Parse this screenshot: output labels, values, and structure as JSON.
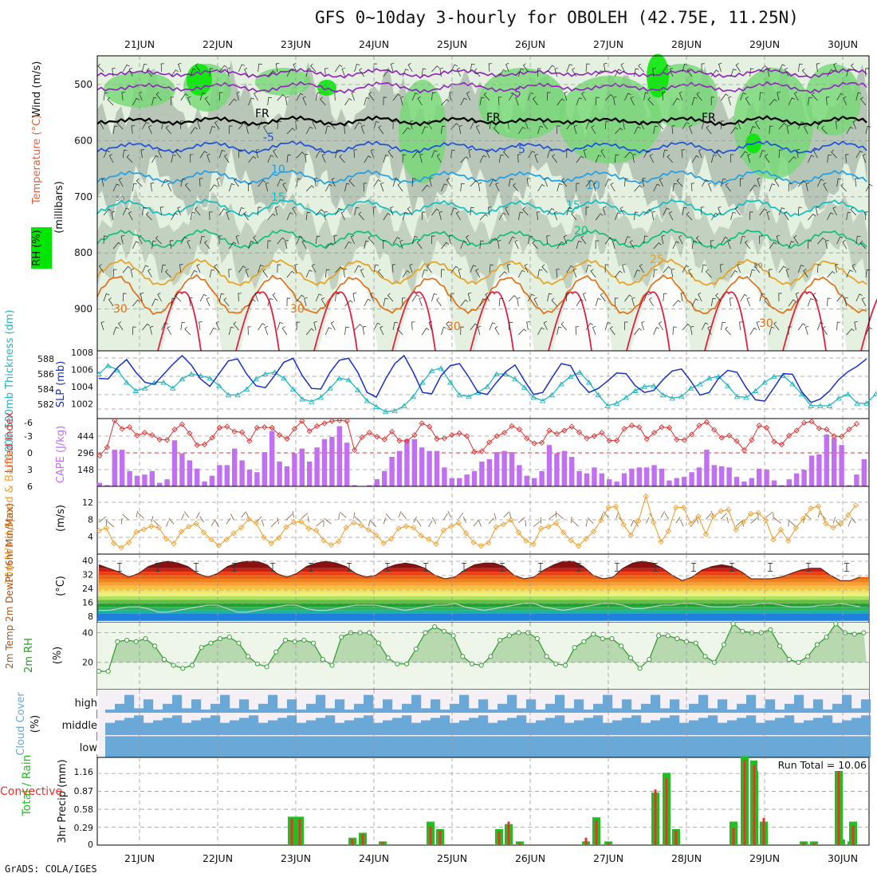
{
  "title": "GFS 0~10day 3-hourly for OBOLEH (42.75E, 11.25N)",
  "credit": "GrADS: COLA/IGES",
  "dates": [
    "21JUN",
    "22JUN",
    "23JUN",
    "24JUN",
    "25JUN",
    "26JUN",
    "27JUN",
    "28JUN",
    "29JUN",
    "30JUN"
  ],
  "colors": {
    "rh_light": "#e4f0e0",
    "rh_mid": "#a8b8a8",
    "rh_green": "#74d874",
    "rh_bright": "#00e600",
    "iso_freeze": "#000000",
    "iso_minus5": "#9020c0",
    "iso_5": "#1e50e0",
    "iso_10": "#20a0e8",
    "iso_15": "#10c0c0",
    "iso_20": "#10c080",
    "iso_25": "#e8a020",
    "iso_30": "#e07018",
    "iso_35": "#e02040",
    "thickness": "#20b8c0",
    "slp": "#1830c8",
    "cape": "#c070f0",
    "lifted": "#e03030",
    "wind_speed": "#f0a030",
    "barbs": "#806040",
    "rh2m": "#2a9a2a",
    "cloud": "#6aa8d8",
    "precip_total": "#20c020",
    "precip_conv": "#f03030"
  },
  "panels": {
    "upper": {
      "ylabel_wind": "Wind (m/s)",
      "ylabel_temp": "Temperature (°C)",
      "ylabel_rh": "RH (%)",
      "ylabel_units": "(millibars)",
      "yticks": [
        "500",
        "600",
        "700",
        "800",
        "900"
      ],
      "iso_labels": [
        "FR",
        "FR",
        "FR",
        "-5",
        "-5",
        "5",
        "5",
        "10",
        "10",
        "15",
        "15",
        "20",
        "25",
        "30",
        "30",
        "30",
        "30",
        "50",
        "50"
      ]
    },
    "slp": {
      "ylabel_left": "1000-500mb Thickness (dm)",
      "ylabel_right": "SLP (mb)",
      "yticks_left": [
        "588",
        "586",
        "584",
        "582"
      ],
      "yticks_right": [
        "1008",
        "1006",
        "1004",
        "1002"
      ]
    },
    "cape": {
      "ylabel_left": "Lifted Index",
      "ylabel_right": "CAPE (J/kg)",
      "yticks_left": [
        "-6",
        "-3",
        "0",
        "3",
        "6"
      ],
      "yticks_right": [
        "444",
        "296",
        "148"
      ]
    },
    "wind10": {
      "ylabel": "10m Wind Speed & Barbs",
      "units": "(m/s)",
      "yticks": [
        "12",
        "8",
        "4"
      ]
    },
    "temp2m": {
      "ylabel": "2m Temp 2m DewPt (6hr Min/Max)",
      "units": "(°C)",
      "yticks": [
        "40",
        "32",
        "24",
        "16",
        "8"
      ]
    },
    "rh2m": {
      "ylabel": "2m RH",
      "units": "(%)",
      "yticks": [
        "40",
        "20"
      ]
    },
    "cloud": {
      "ylabel": "Cloud Cover",
      "units": "(%)",
      "levels": [
        "high",
        "middle",
        "low"
      ]
    },
    "precip": {
      "ylabel_left": "Total / Rain",
      "ylabel_conv": "Convective",
      "ylabel_units": "3hr Precip (mm)",
      "yticks": [
        "1.16",
        "0.87",
        "0.58",
        "0.29",
        "0"
      ],
      "run_total": "Run Total = 10.06"
    }
  },
  "chart_data": [
    {
      "type": "line",
      "title": "Sea level pressure and 1000-500mb thickness",
      "x_unit": "3-hour step from 20JUN 12Z",
      "series": [
        {
          "name": "SLP (mb)",
          "values": [
            1004.6,
            1004.5,
            1006.2,
            1007.4,
            1005.5,
            1004,
            1003.7,
            1005.2,
            1006.7,
            1008,
            1006.6,
            1004.5,
            1003.4,
            1005.3,
            1007.2,
            1007.5,
            1005.2,
            1003.5,
            1003.2,
            1005,
            1007,
            1007.6,
            1005,
            1003.1,
            1003,
            1005.5,
            1007.3,
            1007.6,
            1005.5,
            1002.5,
            1001.8,
            1004.5,
            1006.8,
            1008,
            1005.5,
            1002.5,
            1002.3,
            1005,
            1006.5,
            1006.8,
            1004.8,
            1002.5,
            1002.2,
            1004,
            1005.6,
            1006.6,
            1004.3,
            1002.2,
            1002.5,
            1004.7,
            1006.8,
            1006.5,
            1004,
            1002.5,
            1003.1,
            1004.2,
            1005.4,
            1005.3,
            1003.5,
            1002.5,
            1002.8,
            1004.4,
            1005.7,
            1006,
            1004.2,
            1002.1,
            1002.5,
            1004.6,
            1005.8,
            1005.5,
            1003.2,
            1001.4,
            1001.2,
            1003.2,
            1005.3,
            1005.2,
            1002.6,
            1001,
            1001.5,
            1002.7,
            1004.4,
            1005.6,
            1006.4,
            1007.5
          ]
        },
        {
          "name": "1000-500mb thickness (dm)",
          "values": [
            586,
            587,
            586.5,
            585,
            584,
            584.3,
            585,
            585,
            584.3,
            585.4,
            586,
            585.8,
            585.5,
            584.6,
            583.5,
            583.5,
            584.2,
            585.4,
            586,
            586.2,
            585.5,
            584.2,
            583,
            582.7,
            583.2,
            584.3,
            585.5,
            585.3,
            584.1,
            582.8,
            582.1,
            581.5,
            581.6,
            582.2,
            583.3,
            585,
            586.4,
            586.7,
            585,
            583.5,
            583.3,
            583.8,
            584.5,
            586,
            586,
            585.4,
            584.4,
            583.2,
            582.8,
            583.5,
            584.8,
            585.7,
            586.2,
            585,
            583.5,
            582.2,
            582.5,
            583.2,
            584,
            584.5,
            584.6,
            583.5,
            583.1,
            583.3,
            584.3,
            584.8,
            585.5,
            585.7,
            584.6,
            583.3,
            583.2,
            584,
            585,
            585.7,
            585.8,
            584.8,
            583.6,
            582.2,
            582.2,
            582.2,
            583.1,
            583.6,
            582.5,
            582.5,
            583.6
          ]
        }
      ]
    },
    {
      "type": "bar",
      "title": "CAPE and Lifted Index",
      "series": [
        {
          "name": "CAPE (J/kg)",
          "values": [
            30,
            10,
            310,
            310,
            130,
            90,
            100,
            130,
            30,
            60,
            390,
            280,
            220,
            150,
            40,
            90,
            180,
            180,
            320,
            220,
            140,
            120,
            290,
            470,
            210,
            170,
            280,
            320,
            210,
            330,
            400,
            420,
            510,
            370,
            10,
            0,
            10,
            60,
            130,
            250,
            300,
            400,
            400,
            330,
            300,
            300,
            160,
            70,
            70,
            100,
            130,
            210,
            230,
            290,
            300,
            290,
            180,
            90,
            70,
            130,
            350,
            280,
            300,
            250,
            130,
            110,
            160,
            110,
            60,
            40,
            110,
            150,
            160,
            160,
            180,
            150,
            50,
            70,
            80,
            120,
            160,
            310,
            180,
            170,
            160,
            80,
            40,
            70,
            150,
            140,
            50,
            10,
            60,
            110,
            140,
            260,
            270,
            440,
            410,
            350,
            10,
            100,
            230
          ]
        },
        {
          "name": "Lifted Index",
          "values": [
            0.5,
            -1,
            -5.8,
            -4.3,
            -4.6,
            -3.1,
            -3.6,
            -3.2,
            -2.4,
            -2.3,
            -4.2,
            -5.1,
            -3.5,
            -1.4,
            -1.5,
            -2.7,
            -4.5,
            -4.7,
            -3.8,
            -3.7,
            -2.1,
            -4.5,
            -4.6,
            -4.5,
            -3.2,
            -2.5,
            -4.3,
            -5.7,
            -3.9,
            -4.8,
            -5.3,
            -5.7,
            -5.8,
            -5.7,
            -0.5,
            -2.8,
            -3.6,
            -2.9,
            -2.4,
            -3.8,
            -2.2,
            -2.1,
            -3.2,
            -5.3,
            -4.7,
            -2.5,
            -2.6,
            -3.2,
            -3.5,
            -3,
            -0.2,
            -0.3,
            -1.9,
            -3,
            -3.6,
            -4.8,
            -4.2,
            -2.6,
            -1.7,
            -1.8,
            -4,
            -3.4,
            -4,
            -4.7,
            -3.7,
            -2.6,
            -3,
            -3.6,
            -2.2,
            -2.2,
            -4.3,
            -4.9,
            -4.6,
            -2.5,
            -3.6,
            -4.6,
            -4.5,
            -2.4,
            -2.3,
            -3.3,
            -4.9,
            -5.5,
            -4.1,
            -2.7,
            -3.1,
            -2.1,
            -0.5,
            -2.3,
            -4.9,
            -4.5,
            -2,
            -1.5,
            -3.1,
            -4,
            -5.4,
            -5.6,
            -4.4,
            -4.2,
            -3,
            -2.9,
            -4.2,
            -5.2
          ]
        }
      ]
    },
    {
      "type": "line",
      "title": "10m wind speed (m/s)",
      "series": [
        {
          "name": "10m wind speed",
          "values": [
            5.6,
            6.2,
            2.8,
            1.8,
            3,
            5.3,
            5.9,
            6.6,
            6.3,
            3.8,
            2.7,
            5.4,
            6.5,
            7.2,
            5.2,
            3.6,
            2.3,
            3.6,
            5,
            6.3,
            8.2,
            7.3,
            4.1,
            2.8,
            4,
            6.4,
            7.5,
            7.6,
            6.1,
            5.7,
            3.4,
            2.4,
            3.2,
            6.3,
            7.4,
            6.8,
            5.8,
            4.6,
            2.8,
            3.8,
            6.1,
            6.6,
            6.3,
            4.5,
            3.7,
            2.6,
            5.7,
            6.6,
            7.3,
            5,
            3,
            2.2,
            2.9,
            6.4,
            7,
            8,
            5.2,
            3.3,
            2.6,
            6.1,
            6.5,
            7.3,
            5.2,
            3.4,
            2.2,
            3.8,
            5.4,
            7.9,
            10.8,
            11,
            7,
            4.6,
            7.8,
            13.3,
            7.5,
            3.1,
            5.5,
            10.8,
            10.8,
            7.2,
            8.8,
            4.8,
            8.8,
            10,
            10.3,
            5.8,
            7.5,
            9.4,
            9.6,
            7.9,
            3.6,
            5.8,
            3.3,
            6.2,
            8.3,
            10.6,
            11.1,
            7.2,
            6.3,
            7.3,
            9.1,
            11.3
          ]
        }
      ]
    },
    {
      "type": "area",
      "title": "2m temperature and dew point (°C)",
      "series": [
        {
          "name": "2m Temp",
          "values": [
            38,
            36,
            34,
            31,
            33,
            37,
            39,
            40,
            39,
            37,
            33,
            31,
            33,
            37,
            39,
            40,
            40,
            38,
            33,
            31,
            33,
            37,
            39,
            40,
            39,
            37,
            33,
            31,
            32,
            36,
            38,
            39,
            38,
            36,
            32,
            30,
            31,
            35,
            38,
            39,
            39,
            37,
            32,
            30,
            31,
            35,
            38,
            40,
            40,
            37,
            32,
            30,
            31,
            36,
            39,
            40,
            39,
            36,
            32,
            29,
            31,
            35,
            37,
            38,
            37,
            34,
            30,
            30,
            30,
            31,
            33,
            35,
            36,
            36,
            32,
            29,
            29,
            31
          ]
        },
        {
          "name": "2m DewPt",
          "values": [
            12,
            12,
            13,
            14,
            14,
            13,
            11,
            11,
            12,
            13,
            14,
            15,
            15,
            13,
            11,
            11,
            12,
            13,
            14,
            15,
            15,
            13,
            12,
            12,
            13,
            14,
            15,
            15,
            15,
            14,
            13,
            12,
            13,
            14,
            15,
            15,
            16,
            14,
            13,
            12,
            13,
            14,
            15,
            16,
            16,
            14,
            13,
            12,
            13,
            14,
            15,
            16,
            16,
            15,
            13,
            13,
            14,
            15,
            15,
            16,
            16,
            15,
            14,
            14,
            14,
            15,
            15,
            16,
            16,
            15,
            14,
            14,
            14,
            15,
            15,
            16,
            15,
            14
          ]
        }
      ]
    },
    {
      "type": "area",
      "title": "2m relative humidity (%)",
      "series": [
        {
          "name": "2m RH",
          "values": [
            14,
            14,
            34,
            35,
            34,
            36,
            31,
            22,
            18,
            16,
            18,
            30,
            33,
            36,
            37,
            33,
            24,
            19,
            17,
            27,
            35,
            34,
            35,
            33,
            22,
            18,
            37,
            40,
            40,
            40,
            33,
            23,
            19,
            19,
            29,
            40,
            44,
            41,
            38,
            24,
            19,
            18,
            24,
            35,
            38,
            40,
            40,
            36,
            24,
            19,
            18,
            30,
            34,
            39,
            36,
            36,
            31,
            23,
            16,
            22,
            38,
            38,
            36,
            34,
            33,
            24,
            20,
            32,
            46,
            41,
            40,
            40,
            42,
            31,
            22,
            20,
            24,
            32,
            37,
            46,
            40,
            39,
            40
          ]
        }
      ]
    },
    {
      "type": "bar",
      "title": "3hr precipitation (mm)",
      "x": [
        "23JUN 00Z",
        "23JUN 03Z",
        "23JUN 21Z",
        "24JUN 00Z",
        "24JUN 06Z",
        "24JUN 21Z",
        "25JUN 00Z",
        "25JUN 18Z",
        "25JUN 21Z",
        "26JUN 00Z",
        "26JUN 21Z",
        "27JUN 00Z",
        "27JUN 03Z",
        "27JUN 18Z",
        "27JUN 21Z",
        "28JUN 00Z",
        "28JUN 18Z",
        "28JUN 21Z",
        "29JUN 00Z",
        "29JUN 03Z",
        "29JUN 06Z",
        "29JUN 09Z",
        "30JUN 00Z",
        "30JUN 03Z",
        "30JUN 06Z",
        "30JUN 09Z"
      ],
      "series": [
        {
          "name": "Total / Rain",
          "values": [
            0.46,
            0.46,
            0.12,
            0.2,
            0.06,
            0.38,
            0.26,
            0.26,
            0.34,
            0.06,
            0.06,
            0.45,
            0.06,
            0.85,
            1.17,
            0.26,
            0.38,
            1.44,
            1.37,
            0.38,
            0.06,
            0.06,
            0.09,
            0.06,
            1.2,
            0.38
          ]
        },
        {
          "name": "Convective",
          "values": [
            0.43,
            0.42,
            0.1,
            0.18,
            0.05,
            0.3,
            0.24,
            0.22,
            0.38,
            0.04,
            0.12,
            0.4,
            0.04,
            0.9,
            1.08,
            0.24,
            0.28,
            1.38,
            1.3,
            0.44,
            0.04,
            0.04,
            0.12,
            0.05,
            1.26,
            0.32
          ]
        }
      ]
    }
  ]
}
